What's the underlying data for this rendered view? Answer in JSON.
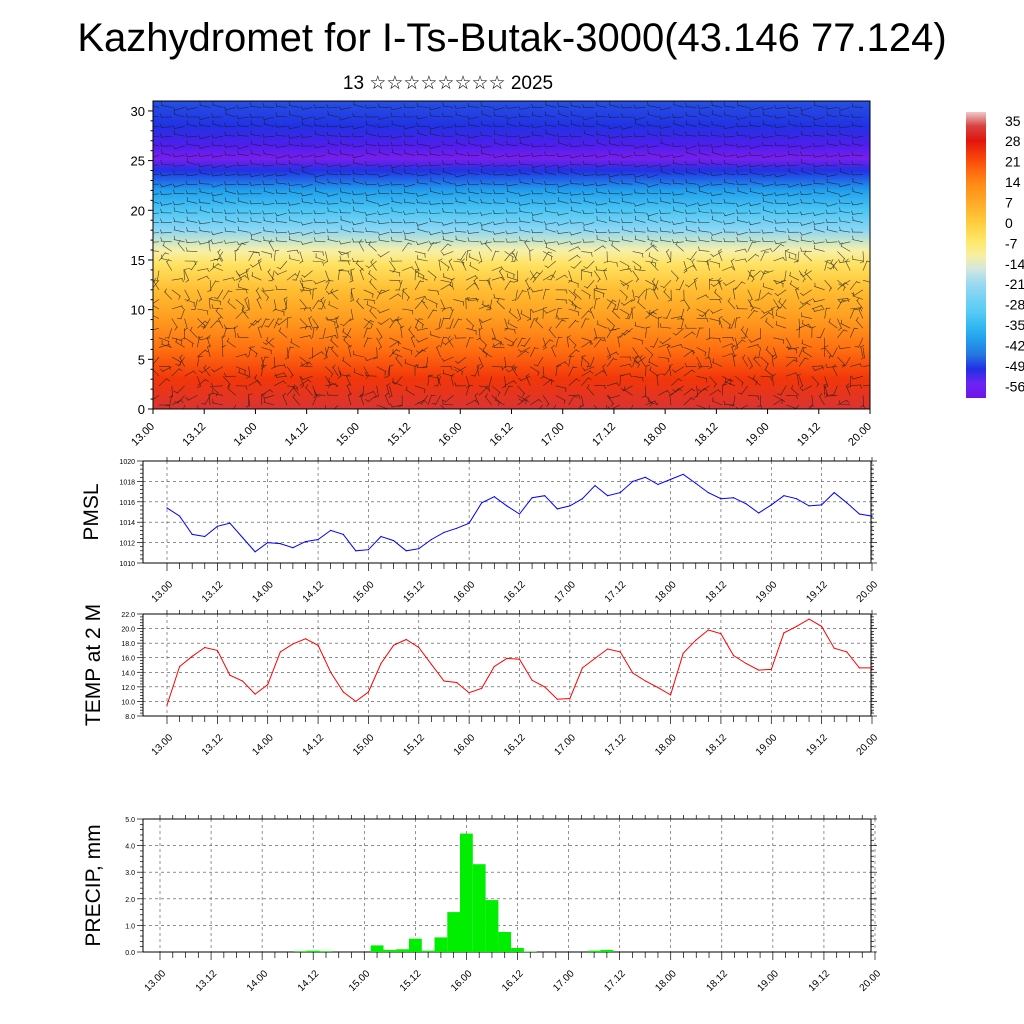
{
  "header": {
    "title": "Kazhydromet for I-Ts-Butak-3000(43.146 77.124)",
    "subtitle": "13 ☆☆☆☆☆☆☆☆ 2025"
  },
  "chart_data": [
    {
      "type": "heatmap",
      "title": "",
      "xlabel": "",
      "ylabel": "",
      "x_ticks": [
        "13.00",
        "13.12",
        "14.00",
        "14.12",
        "15.00",
        "15.12",
        "16.00",
        "16.12",
        "17.00",
        "17.12",
        "18.00",
        "18.12",
        "19.00",
        "19.12",
        "20.00"
      ],
      "y_ticks": [
        0,
        5,
        10,
        15,
        20,
        25,
        30
      ],
      "ylim": [
        0,
        31
      ],
      "colorbar_labels": [
        "35",
        "28",
        "21",
        "14",
        "7",
        "0",
        "-7",
        "-14",
        "-21",
        "-28",
        "-35",
        "-42",
        "-49",
        "-56"
      ],
      "colorbar_range": [
        -60,
        38
      ],
      "temperature_profile": [
        {
          "level": 0,
          "value": 32
        },
        {
          "level": 3,
          "value": 24
        },
        {
          "level": 6,
          "value": 17
        },
        {
          "level": 9,
          "value": 10
        },
        {
          "level": 12,
          "value": 3
        },
        {
          "level": 14.5,
          "value": -5
        },
        {
          "level": 16,
          "value": -12
        },
        {
          "level": 18,
          "value": -22
        },
        {
          "level": 20,
          "value": -32
        },
        {
          "level": 22,
          "value": -40
        },
        {
          "level": 24,
          "value": -50
        },
        {
          "level": 25.2,
          "value": -58
        },
        {
          "level": 26.5,
          "value": -54
        },
        {
          "level": 28.5,
          "value": -50
        },
        {
          "level": 31,
          "value": -48
        }
      ],
      "notes": "wind barbs overlay"
    },
    {
      "type": "line",
      "ylabel": "PMSL",
      "ylim": [
        1010,
        1020
      ],
      "y_ticks": [
        "1010",
        "1012",
        "1014",
        "1016",
        "1018",
        "1020"
      ],
      "x_ticks": [
        "13.00",
        "13.12",
        "14.00",
        "14.12",
        "15.00",
        "15.12",
        "16.00",
        "16.12",
        "17.00",
        "17.12",
        "18.00",
        "18.12",
        "19.00",
        "19.12",
        "20.00"
      ],
      "line_color": "#0000ff",
      "x_step_hours": 3,
      "values": [
        1015.4,
        1014.6,
        1012.8,
        1012.6,
        1013.6,
        1013.9,
        1012.5,
        1011.1,
        1012.0,
        1011.9,
        1011.5,
        1012.1,
        1012.3,
        1013.2,
        1012.8,
        1011.2,
        1011.3,
        1012.6,
        1012.2,
        1011.2,
        1011.4,
        1012.3,
        1013.0,
        1013.4,
        1013.9,
        1015.9,
        1016.5,
        1015.6,
        1014.8,
        1016.4,
        1016.6,
        1015.3,
        1015.6,
        1016.3,
        1017.6,
        1016.6,
        1016.9,
        1018.0,
        1018.4,
        1017.7,
        1018.2,
        1018.7,
        1017.8,
        1016.9,
        1016.3,
        1016.4,
        1015.8,
        1014.9,
        1015.7,
        1016.6,
        1016.3,
        1015.6,
        1015.7,
        1016.9,
        1015.9,
        1014.8,
        1014.6
      ]
    },
    {
      "type": "line",
      "ylabel": "TEMP at 2 M",
      "ylim": [
        8,
        22
      ],
      "y_ticks": [
        "8.0",
        "10.0",
        "12.0",
        "14.0",
        "16.0",
        "18.0",
        "20.0",
        "22.0"
      ],
      "x_ticks": [
        "13.00",
        "13.12",
        "14.00",
        "14.12",
        "15.00",
        "15.12",
        "16.00",
        "16.12",
        "17.00",
        "17.12",
        "18.00",
        "18.12",
        "19.00",
        "19.12",
        "20.00"
      ],
      "line_color": "#ff0000",
      "x_step_hours": 3,
      "values": [
        9.5,
        14.8,
        16.2,
        17.4,
        17.0,
        13.6,
        12.8,
        11.0,
        12.3,
        16.8,
        17.9,
        18.6,
        17.7,
        14.0,
        11.3,
        10.0,
        11.3,
        15.2,
        17.7,
        18.5,
        17.4,
        15.1,
        12.8,
        12.6,
        11.2,
        11.8,
        14.8,
        15.9,
        15.8,
        12.9,
        12.0,
        10.3,
        10.4,
        14.6,
        15.9,
        17.2,
        16.8,
        13.9,
        12.8,
        11.9,
        10.9,
        16.6,
        18.4,
        19.8,
        19.3,
        16.3,
        15.2,
        14.3,
        14.4,
        19.4,
        20.3,
        21.3,
        20.3,
        17.3,
        16.8,
        14.6,
        14.6
      ]
    },
    {
      "type": "bar",
      "ylabel": "PRECIP, mm",
      "ylim": [
        0,
        5
      ],
      "y_ticks": [
        "0.0",
        "1.0",
        "2.0",
        "3.0",
        "4.0",
        "5.0"
      ],
      "x_ticks": [
        "13.00",
        "13.12",
        "14.00",
        "14.12",
        "15.00",
        "15.12",
        "16.00",
        "16.12",
        "17.00",
        "17.12",
        "18.00",
        "18.12",
        "19.00",
        "19.12",
        "20.00"
      ],
      "bar_color": "#00ee00",
      "x_step_hours": 3,
      "values": [
        0,
        0,
        0,
        0,
        0,
        0,
        0,
        0,
        0,
        0,
        0,
        0.03,
        0.05,
        0.03,
        0,
        0,
        0,
        0.25,
        0.08,
        0.1,
        0.5,
        0.05,
        0.55,
        1.5,
        4.45,
        3.3,
        1.95,
        0.75,
        0.15,
        0.02,
        0,
        0,
        0,
        0,
        0.05,
        0.08,
        0,
        0,
        0,
        0,
        0,
        0,
        0,
        0,
        0,
        0,
        0,
        0,
        0,
        0,
        0,
        0,
        0,
        0,
        0,
        0,
        0
      ]
    }
  ]
}
